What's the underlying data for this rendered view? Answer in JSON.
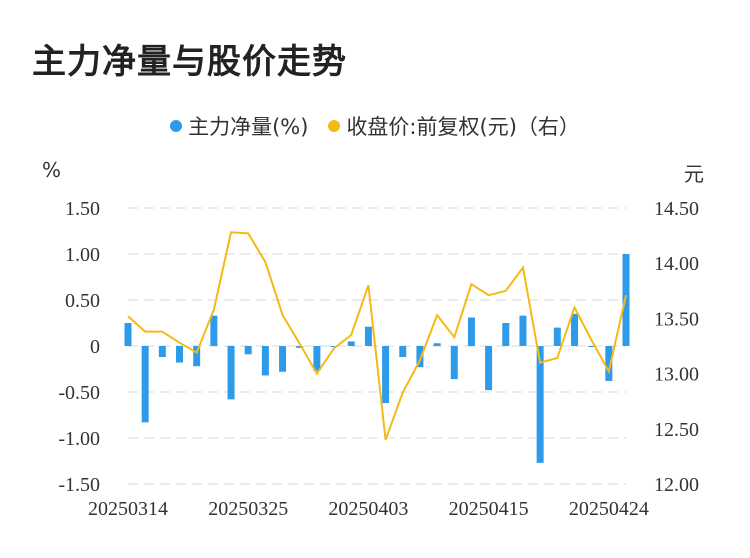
{
  "title": "主力净量与股价走势",
  "legend": {
    "bar_label": "主力净量(%)",
    "line_label": "收盘价:前复权(元)（右）"
  },
  "colors": {
    "bar": "#2E9BEA",
    "line": "#F5B917",
    "grid": "#E6E6E6",
    "axis_text": "#333333"
  },
  "chart_data": {
    "type": "bar+line",
    "left_axis": {
      "unit": "%",
      "ticks": [
        "1.50",
        "1.00",
        "0.50",
        "0",
        "-0.50",
        "-1.00",
        "-1.50"
      ],
      "ylim": [
        -1.5,
        1.5
      ]
    },
    "right_axis": {
      "unit": "元",
      "ticks": [
        "14.50",
        "14.00",
        "13.50",
        "13.00",
        "12.50",
        "12.00"
      ],
      "ylim": [
        12.0,
        14.5
      ]
    },
    "x_tick_labels": [
      {
        "index": 0,
        "label": "20250314"
      },
      {
        "index": 7,
        "label": "20250325"
      },
      {
        "index": 14,
        "label": "20250403"
      },
      {
        "index": 21,
        "label": "20250415"
      },
      {
        "index": 28,
        "label": "20250424"
      }
    ],
    "series": [
      {
        "name": "主力净量(%)",
        "type": "bar",
        "axis": "left",
        "values": [
          0.25,
          -0.83,
          -0.12,
          -0.18,
          -0.22,
          0.33,
          -0.58,
          -0.09,
          -0.32,
          -0.28,
          -0.02,
          -0.27,
          0.0,
          0.05,
          0.21,
          -0.62,
          -0.12,
          -0.23,
          0.03,
          -0.36,
          0.31,
          -0.48,
          0.25,
          0.33,
          -1.27,
          0.2,
          0.35,
          0.0,
          -0.38,
          1.0
        ]
      },
      {
        "name": "收盘价:前复权(元)（右）",
        "type": "line",
        "axis": "right",
        "values": [
          13.52,
          13.38,
          13.38,
          13.28,
          13.19,
          13.58,
          14.28,
          14.27,
          14.01,
          13.53,
          13.27,
          13.0,
          13.23,
          13.35,
          13.8,
          12.4,
          12.83,
          13.12,
          13.53,
          13.33,
          13.81,
          13.71,
          13.75,
          13.96,
          13.1,
          13.14,
          13.6,
          13.3,
          13.02,
          13.71
        ]
      }
    ]
  }
}
